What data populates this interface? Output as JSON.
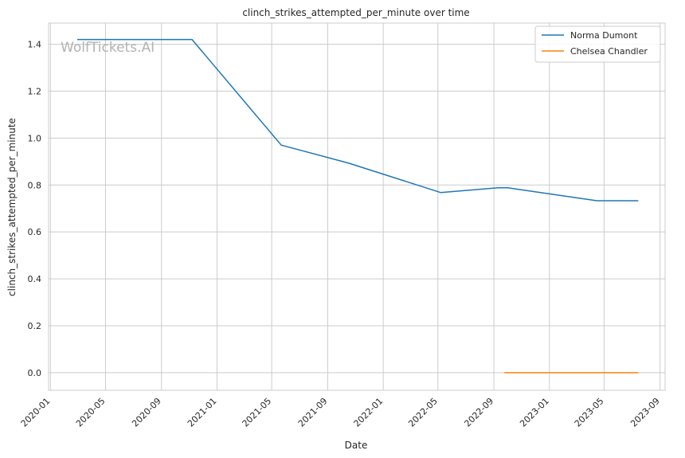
{
  "chart_data": {
    "type": "line",
    "title": "clinch_strikes_attempted_per_minute over time",
    "xlabel": "Date",
    "ylabel": "clinch_strikes_attempted_per_minute",
    "watermark": "WolfTickets.AI",
    "x_ticks": [
      "2020-01",
      "2020-05",
      "2020-09",
      "2021-01",
      "2021-05",
      "2021-09",
      "2022-01",
      "2022-05",
      "2022-09",
      "2023-01",
      "2023-05",
      "2023-09"
    ],
    "y_ticks": [
      "0.0",
      "0.2",
      "0.4",
      "0.6",
      "0.8",
      "1.0",
      "1.2",
      "1.4"
    ],
    "xlim": [
      "2019-12-28",
      "2023-09-12"
    ],
    "ylim": [
      -0.075,
      1.49
    ],
    "grid": true,
    "legend_position": "top-right",
    "series": [
      {
        "name": "Norma Dumont",
        "color": "#1f77b4",
        "points": [
          {
            "x": "2020-02-29",
            "y": 1.42
          },
          {
            "x": "2020-11-07",
            "y": 1.42
          },
          {
            "x": "2021-05-22",
            "y": 0.97
          },
          {
            "x": "2021-10-16",
            "y": 0.894
          },
          {
            "x": "2022-05-07",
            "y": 0.768
          },
          {
            "x": "2022-09-10",
            "y": 0.788
          },
          {
            "x": "2022-10-01",
            "y": 0.788
          },
          {
            "x": "2023-04-15",
            "y": 0.733
          },
          {
            "x": "2023-07-15",
            "y": 0.733
          }
        ]
      },
      {
        "name": "Chelsea Chandler",
        "color": "#ff7f0e",
        "points": [
          {
            "x": "2022-09-24",
            "y": 0.0
          },
          {
            "x": "2023-04-15",
            "y": 0.0
          },
          {
            "x": "2023-07-15",
            "y": 0.0
          }
        ]
      }
    ]
  }
}
